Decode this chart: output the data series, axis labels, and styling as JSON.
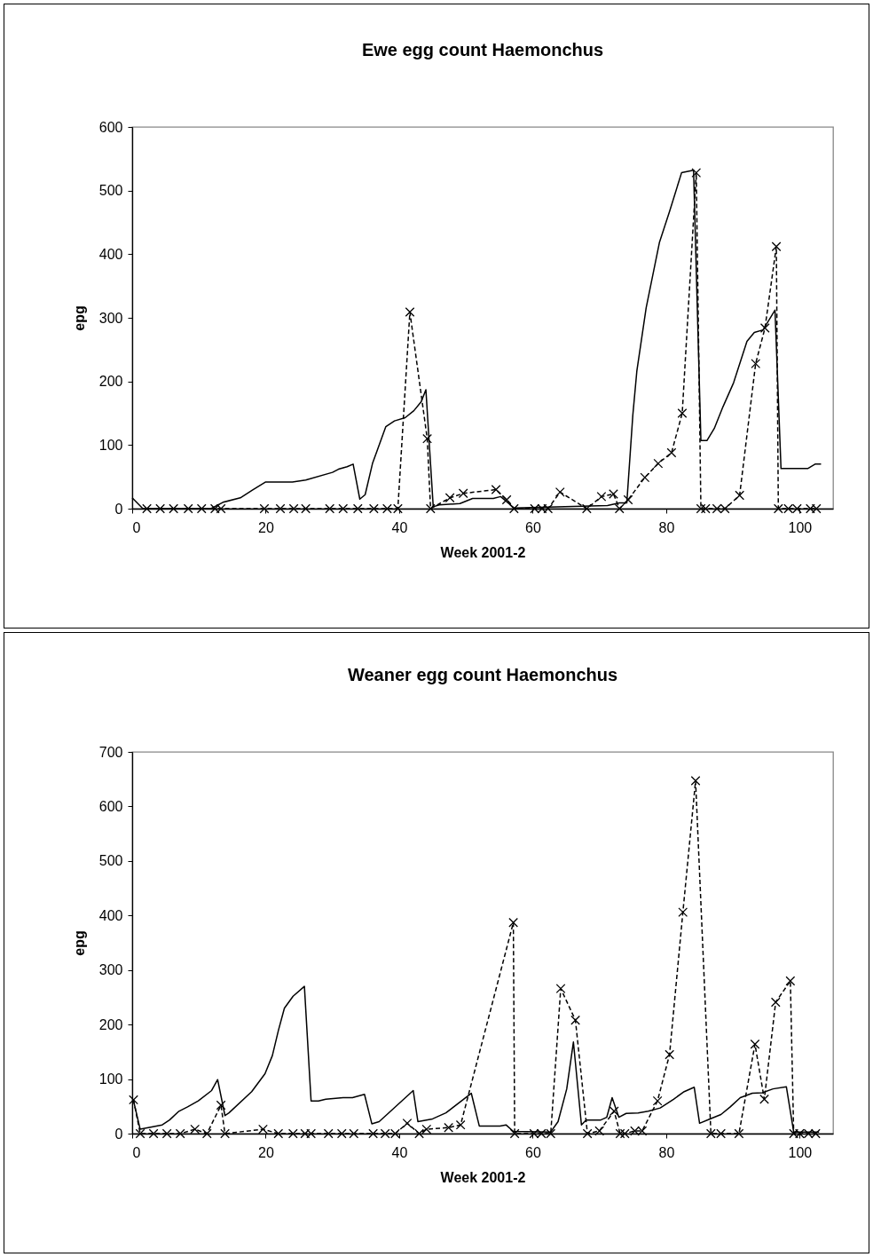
{
  "chart_data": [
    {
      "type": "line",
      "title": "Ewe egg count Haemonchus",
      "xlabel": "Week 2001-2",
      "ylabel": "epg",
      "xlim": [
        0,
        105
      ],
      "ylim": [
        0,
        600
      ],
      "xticks": [
        0,
        20,
        40,
        60,
        80,
        100
      ],
      "yticks": [
        0,
        100,
        200,
        300,
        400,
        500,
        600
      ],
      "grid": false,
      "series": [
        {
          "color": "#000000",
          "line_style": "solid",
          "marker": "none",
          "x": [
            0,
            1.6,
            11.8,
            13.6,
            16.2,
            18,
            20,
            24,
            26,
            30,
            30.9,
            32.2,
            33.1,
            34.1,
            34.9,
            36,
            38,
            39.3,
            40.9,
            42.2,
            43.3,
            44,
            45.1,
            46,
            49.1,
            51,
            54.1,
            55.2,
            57.2,
            71.2,
            73,
            74.1,
            75,
            75.6,
            77,
            79,
            80.5,
            82.3,
            84.1,
            85.2,
            86.1,
            87.2,
            88.5,
            90.1,
            92.1,
            93.2,
            94.5,
            96.3,
            97.2,
            101.2,
            102.3,
            103.2
          ],
          "values": [
            17,
            0,
            0,
            10,
            17,
            29,
            42,
            42,
            45,
            57,
            62,
            66,
            70,
            15,
            22,
            71,
            129,
            138,
            143,
            154,
            168,
            187,
            3,
            6,
            8,
            16,
            16,
            19,
            1,
            5,
            9,
            9,
            147,
            216,
            316,
            419,
            467,
            528,
            532,
            107,
            107,
            126,
            160,
            198,
            263,
            277,
            281,
            312,
            63,
            63,
            70,
            70
          ]
        },
        {
          "color": "#000000",
          "line_style": "dashed",
          "marker": "cross",
          "x": [
            2.2,
            4.2,
            6.2,
            8.4,
            10.4,
            12.4,
            13.3,
            19.8,
            22.2,
            24.2,
            26,
            29.6,
            31.6,
            33.8,
            36.2,
            38.2,
            39.8,
            41.6,
            44.2,
            44.7,
            47.6,
            49.6,
            54.5,
            56.1,
            57.2,
            60.3,
            61.4,
            62.3,
            64.1,
            68.1,
            70.3,
            72.1,
            73,
            74.3,
            76.8,
            78.8,
            80.8,
            82.4,
            84.5,
            85.2,
            85.9,
            87.6,
            88.8,
            91,
            93.4,
            94.8,
            96.5,
            96.8,
            98.3,
            99.6,
            101.6,
            102.5
          ],
          "values": [
            0,
            0,
            0,
            0,
            0,
            0,
            0,
            0,
            0,
            0,
            0,
            0,
            0,
            0,
            0,
            0,
            0,
            309,
            110,
            0,
            17,
            24,
            30,
            14,
            0,
            0,
            0,
            0,
            26,
            0,
            19,
            23,
            0,
            14,
            49,
            71,
            88,
            150,
            528,
            0,
            0,
            0,
            0,
            21,
            228,
            284,
            412,
            0,
            0,
            0,
            0,
            0
          ]
        }
      ]
    },
    {
      "type": "line",
      "title": "Weaner egg count Haemonchus",
      "xlabel": "Week 2001-2",
      "ylabel": "epg",
      "xlim": [
        0,
        105
      ],
      "ylim": [
        0,
        700
      ],
      "xticks": [
        0,
        20,
        40,
        60,
        80,
        100
      ],
      "yticks": [
        0,
        100,
        200,
        300,
        400,
        500,
        600,
        700
      ],
      "grid": false,
      "series": [
        {
          "color": "#000000",
          "line_style": "solid",
          "marker": "none",
          "x": [
            0.2,
            1.2,
            4.5,
            5.6,
            7,
            8.3,
            9.9,
            11.9,
            12.8,
            13.9,
            14.5,
            17.9,
            19.9,
            21,
            21.9,
            22.8,
            24.1,
            25.8,
            26.8,
            27.9,
            29,
            31.6,
            33,
            34.8,
            35.9,
            37,
            42.1,
            42.8,
            45,
            47,
            50.8,
            52,
            55.1,
            56,
            57.1,
            62.7,
            63.8,
            65.1,
            66.1,
            67.3,
            68,
            70.2,
            71.1,
            71.9,
            72.9,
            74,
            75.8,
            77.3,
            79.1,
            81.1,
            82.7,
            84.2,
            85,
            86.4,
            88.2,
            89.6,
            91.1,
            92.9,
            94.4,
            96,
            98,
            99.1,
            102.9
          ],
          "values": [
            60,
            8,
            16,
            25,
            41,
            49,
            60,
            79,
            99,
            33,
            38,
            77,
            110,
            143,
            189,
            230,
            252,
            270,
            60,
            60,
            63,
            66,
            66,
            72,
            18,
            22,
            79,
            22,
            27,
            38,
            74,
            14,
            14,
            16,
            4,
            3,
            22,
            82,
            168,
            16,
            25,
            25,
            30,
            66,
            30,
            37,
            38,
            41,
            47,
            63,
            77,
            85,
            19,
            26,
            35,
            49,
            66,
            74,
            75,
            82,
            86,
            3,
            3
          ]
        },
        {
          "color": "#000000",
          "line_style": "dashed",
          "marker": "cross",
          "x": [
            0.2,
            1.2,
            3.2,
            5.2,
            7.2,
            9.4,
            11.2,
            13.3,
            13.9,
            19.6,
            21.9,
            24.1,
            25.9,
            26.8,
            29.4,
            31.4,
            33.2,
            36.1,
            37.9,
            39.4,
            41.2,
            43,
            44.1,
            47.4,
            49.2,
            57.1,
            57.3,
            60.2,
            61.3,
            62.7,
            64.2,
            66.4,
            68.2,
            70,
            72.2,
            73.1,
            73.8,
            75.3,
            76.4,
            78.7,
            80.5,
            82.5,
            84.4,
            86.7,
            88.2,
            90.9,
            93.3,
            94.7,
            96.4,
            98.6,
            99.1,
            100,
            101.3,
            102.4
          ],
          "values": [
            62,
            0,
            0,
            0,
            0,
            8,
            0,
            52,
            0,
            8,
            0,
            0,
            0,
            0,
            0,
            0,
            0,
            0,
            0,
            0,
            19,
            0,
            8,
            11,
            16,
            387,
            0,
            0,
            0,
            0,
            266,
            208,
            0,
            5,
            41,
            0,
            0,
            5,
            5,
            60,
            145,
            406,
            647,
            0,
            0,
            0,
            164,
            63,
            241,
            280,
            0,
            0,
            0,
            0
          ]
        }
      ]
    }
  ]
}
